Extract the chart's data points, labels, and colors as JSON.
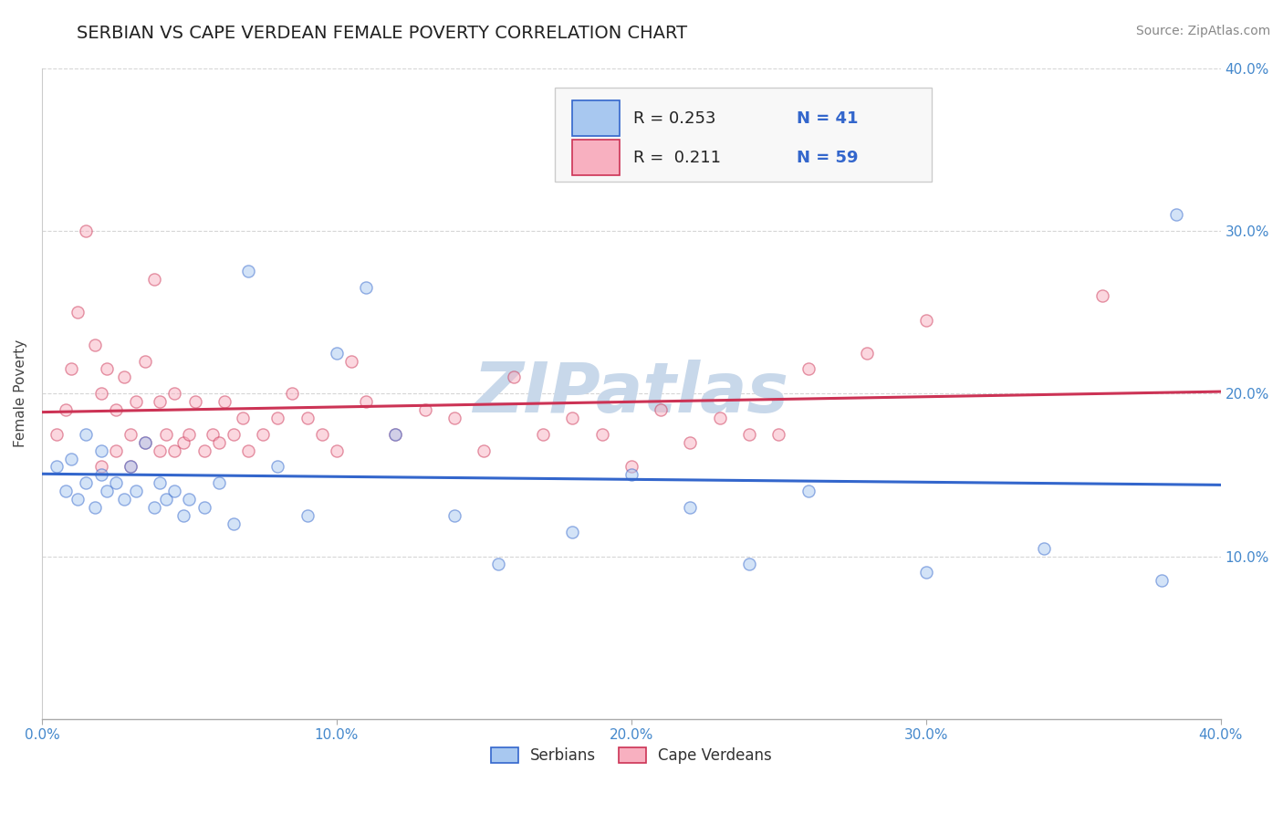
{
  "title": "SERBIAN VS CAPE VERDEAN FEMALE POVERTY CORRELATION CHART",
  "source_text": "Source: ZipAtlas.com",
  "ylabel": "Female Poverty",
  "xlim": [
    0.0,
    0.4
  ],
  "ylim": [
    0.0,
    0.4
  ],
  "xticks": [
    0.0,
    0.1,
    0.2,
    0.3,
    0.4
  ],
  "yticks": [
    0.1,
    0.2,
    0.3,
    0.4
  ],
  "xticklabels": [
    "0.0%",
    "10.0%",
    "20.0%",
    "30.0%",
    "40.0%"
  ],
  "yticklabels": [
    "10.0%",
    "20.0%",
    "30.0%",
    "40.0%"
  ],
  "serbian_color": "#a8c8f0",
  "cape_verdean_color": "#f8b0c0",
  "serbian_line_color": "#3366cc",
  "cape_verdean_line_color": "#cc3355",
  "R_serbian": 0.253,
  "N_serbian": 41,
  "R_cape_verdean": 0.211,
  "N_cape_verdean": 59,
  "watermark": "ZIPatlas",
  "watermark_color": "#c8d8ea",
  "serbian_x": [
    0.005,
    0.008,
    0.01,
    0.012,
    0.015,
    0.015,
    0.018,
    0.02,
    0.02,
    0.022,
    0.025,
    0.028,
    0.03,
    0.032,
    0.035,
    0.038,
    0.04,
    0.042,
    0.045,
    0.048,
    0.05,
    0.055,
    0.06,
    0.065,
    0.07,
    0.08,
    0.09,
    0.1,
    0.11,
    0.12,
    0.14,
    0.155,
    0.18,
    0.2,
    0.22,
    0.24,
    0.26,
    0.3,
    0.34,
    0.38,
    0.385
  ],
  "serbian_y": [
    0.155,
    0.14,
    0.16,
    0.135,
    0.145,
    0.175,
    0.13,
    0.15,
    0.165,
    0.14,
    0.145,
    0.135,
    0.155,
    0.14,
    0.17,
    0.13,
    0.145,
    0.135,
    0.14,
    0.125,
    0.135,
    0.13,
    0.145,
    0.12,
    0.275,
    0.155,
    0.125,
    0.225,
    0.265,
    0.175,
    0.125,
    0.095,
    0.115,
    0.15,
    0.13,
    0.095,
    0.14,
    0.09,
    0.105,
    0.085,
    0.31
  ],
  "cape_verdean_x": [
    0.005,
    0.008,
    0.01,
    0.012,
    0.015,
    0.018,
    0.02,
    0.02,
    0.022,
    0.025,
    0.025,
    0.028,
    0.03,
    0.03,
    0.032,
    0.035,
    0.035,
    0.038,
    0.04,
    0.04,
    0.042,
    0.045,
    0.045,
    0.048,
    0.05,
    0.052,
    0.055,
    0.058,
    0.06,
    0.062,
    0.065,
    0.068,
    0.07,
    0.075,
    0.08,
    0.085,
    0.09,
    0.095,
    0.1,
    0.105,
    0.11,
    0.12,
    0.13,
    0.14,
    0.15,
    0.16,
    0.17,
    0.18,
    0.19,
    0.2,
    0.21,
    0.22,
    0.23,
    0.24,
    0.25,
    0.26,
    0.28,
    0.3,
    0.36
  ],
  "cape_verdean_y": [
    0.175,
    0.19,
    0.215,
    0.25,
    0.3,
    0.23,
    0.155,
    0.2,
    0.215,
    0.165,
    0.19,
    0.21,
    0.155,
    0.175,
    0.195,
    0.17,
    0.22,
    0.27,
    0.165,
    0.195,
    0.175,
    0.165,
    0.2,
    0.17,
    0.175,
    0.195,
    0.165,
    0.175,
    0.17,
    0.195,
    0.175,
    0.185,
    0.165,
    0.175,
    0.185,
    0.2,
    0.185,
    0.175,
    0.165,
    0.22,
    0.195,
    0.175,
    0.19,
    0.185,
    0.165,
    0.21,
    0.175,
    0.185,
    0.175,
    0.155,
    0.19,
    0.17,
    0.185,
    0.175,
    0.175,
    0.215,
    0.225,
    0.245,
    0.26
  ],
  "background_color": "#ffffff",
  "grid_color": "#cccccc",
  "title_fontsize": 14,
  "axis_label_fontsize": 11,
  "tick_fontsize": 11,
  "legend_fontsize": 13,
  "source_fontsize": 10,
  "marker_size": 90,
  "marker_alpha": 0.5,
  "line_width": 2.2
}
